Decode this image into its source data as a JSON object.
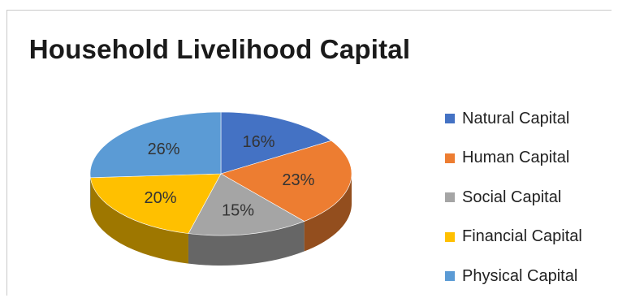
{
  "chart_data": {
    "type": "pie",
    "title": "Household Livelihood Capital",
    "categories": [
      "Natural Capital",
      "Human Capital",
      "Social Capital",
      "Financial Capital",
      "Physical Capital"
    ],
    "values": [
      16,
      23,
      15,
      20,
      26
    ],
    "labels": [
      "16%",
      "23%",
      "15%",
      "20%",
      "26%"
    ],
    "colors": [
      "#4472c4",
      "#ed7d31",
      "#a5a5a5",
      "#ffc000",
      "#5b9bd5"
    ],
    "style": "3d",
    "legend_position": "right"
  }
}
